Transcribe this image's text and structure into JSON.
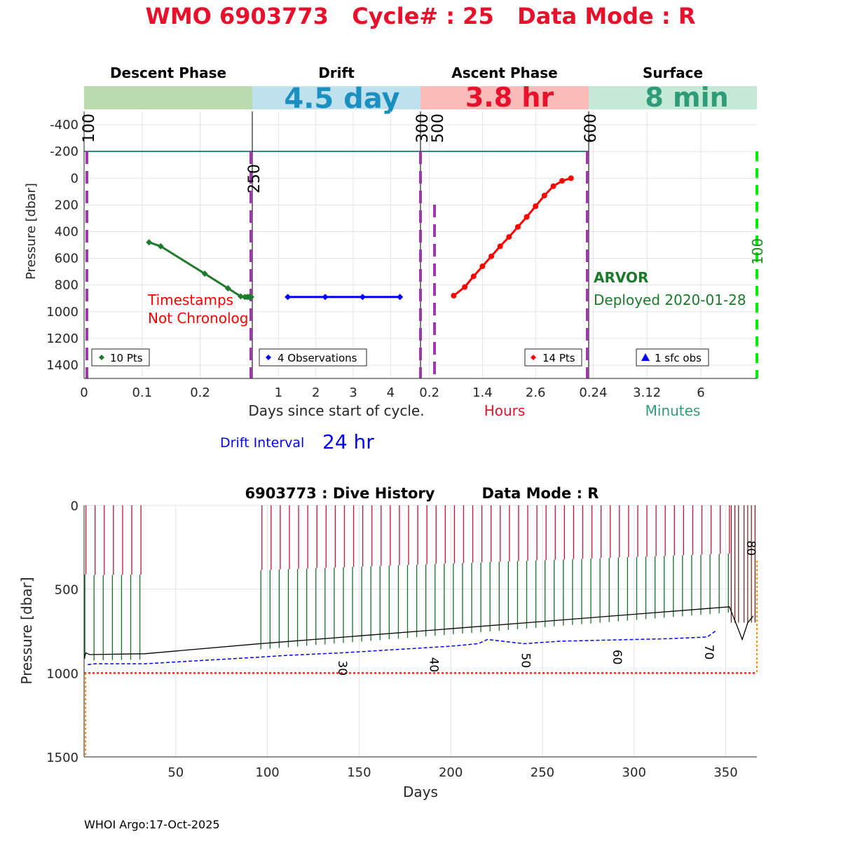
{
  "title": "WMO 6903773   Cycle# : 25   Data Mode : R",
  "top_chart": {
    "ylabel": "Pressure [dbar]",
    "y_ticks": [
      "-400",
      "-200",
      "0",
      "200",
      "400",
      "600",
      "800",
      "1000",
      "1200",
      "1400"
    ],
    "y_tick_values": [
      -400,
      -200,
      0,
      200,
      400,
      600,
      800,
      1000,
      1200,
      1400
    ],
    "ylim": [
      -500,
      1500
    ],
    "phases": [
      {
        "name": "Descent Phase",
        "duration": "",
        "color": "#b9dbad"
      },
      {
        "name": "Drift",
        "duration": "4.5 day",
        "color": "#bfe1ed",
        "duration_color": "#1a8fc0"
      },
      {
        "name": "Ascent Phase",
        "duration": "3.8 hr",
        "color": "#fbbcb9",
        "duration_color": "#e8102a"
      },
      {
        "name": "Surface",
        "duration": "8 min",
        "color": "#c5e9d7",
        "duration_color": "#2e9c78"
      }
    ],
    "descent_xticks": [
      {
        "v": 0,
        "label": "0"
      },
      {
        "v": 0.1,
        "label": "0.1"
      },
      {
        "v": 0.2,
        "label": "0.2"
      }
    ],
    "drift_xticks": [
      {
        "v": 1,
        "label": "1"
      },
      {
        "v": 2,
        "label": "2"
      },
      {
        "v": 3,
        "label": "3"
      },
      {
        "v": 4,
        "label": "4"
      }
    ],
    "ascent_xticks": [
      {
        "v": 0.2,
        "label": "0.2"
      },
      {
        "v": 1.4,
        "label": "1.4"
      },
      {
        "v": 2.6,
        "label": "2.6"
      }
    ],
    "surface_xticks": [
      {
        "v": 0.24,
        "label": "0.24"
      },
      {
        "v": 3.12,
        "label": "3.12"
      },
      {
        "v": 6,
        "label": "6"
      }
    ],
    "xlabel_days": "Days since start of cycle.",
    "xlabel_hours": "Hours",
    "xlabel_minutes": "Minutes",
    "marker_labels": {
      "descent_start": "100",
      "descent_end": "250",
      "drift_end": "300",
      "ascent_start": "500",
      "ascent_end": "600",
      "surface_end": "100"
    },
    "warning": [
      "Timestamps",
      "Not Chronolog"
    ],
    "float_type": "ARVOR",
    "deployed": "Deployed 2020-01-28",
    "legends": {
      "descent": "10 Pts",
      "drift": "4 Observations",
      "ascent": "14 Pts",
      "surface": "1 sfc obs"
    },
    "drift_interval_label": "Drift Interval",
    "drift_interval_value": "24 hr"
  },
  "chart_data": [
    {
      "type": "line",
      "title": "Descent Phase",
      "xlabel": "Days since start of cycle.",
      "ylabel": "Pressure [dbar]",
      "xlim": [
        0,
        0.29
      ],
      "ylim": [
        -500,
        1500
      ],
      "series": [
        {
          "name": "10 Pts",
          "color": "#1f7a2e",
          "x": [
            0.112,
            0.132,
            0.208,
            0.248,
            0.27,
            0.277,
            0.281,
            0.284,
            0.286,
            0.288
          ],
          "y": [
            480,
            510,
            715,
            825,
            885,
            890,
            890,
            890,
            890,
            890
          ]
        }
      ]
    },
    {
      "type": "line",
      "title": "Drift",
      "xlabel": "Days since start of cycle.",
      "xlim": [
        0.3,
        4.8
      ],
      "ylim": [
        -500,
        1500
      ],
      "series": [
        {
          "name": "4 Observations",
          "color": "#0000ff",
          "x": [
            1.25,
            2.25,
            3.25,
            4.25
          ],
          "y": [
            890,
            890,
            890,
            890
          ]
        }
      ]
    },
    {
      "type": "line",
      "title": "Ascent Phase",
      "xlabel": "Hours",
      "xlim": [
        0,
        3.8
      ],
      "ylim": [
        -500,
        1500
      ],
      "series": [
        {
          "name": "14 Pts",
          "color": "#ff0000",
          "x": [
            0.75,
            1.0,
            1.2,
            1.4,
            1.6,
            1.8,
            2.0,
            2.2,
            2.4,
            2.6,
            2.8,
            3.0,
            3.2,
            3.4
          ],
          "y": [
            880,
            815,
            735,
            660,
            585,
            510,
            440,
            365,
            290,
            210,
            130,
            60,
            20,
            0
          ]
        }
      ]
    },
    {
      "type": "scatter",
      "title": "Surface",
      "xlabel": "Minutes",
      "xlim": [
        0,
        9
      ],
      "ylim": [
        -500,
        1500
      ],
      "series": [
        {
          "name": "1 sfc obs",
          "color": "#0000ff",
          "x": [],
          "y": []
        }
      ]
    },
    {
      "type": "line",
      "title": "6903773 : Dive History      Data Mode : R",
      "xlabel": "Days",
      "ylabel": "Pressure [dbar]",
      "xlim": [
        0,
        367
      ],
      "ylim": [
        0,
        1500
      ],
      "xticks": [
        50,
        100,
        150,
        200,
        250,
        300,
        350
      ],
      "yticks": [
        0,
        500,
        1000,
        1500
      ],
      "grid": true,
      "park_depth_line": 1000,
      "cycle_labels": [
        {
          "label": "30",
          "x": 141,
          "y": 925
        },
        {
          "label": "40",
          "x": 191,
          "y": 905
        },
        {
          "label": "50",
          "x": 241,
          "y": 880
        },
        {
          "label": "60",
          "x": 291,
          "y": 860
        },
        {
          "label": "70",
          "x": 341,
          "y": 830
        },
        {
          "label": "80",
          "x": 364,
          "y": 210
        }
      ],
      "series": [
        {
          "name": "drift trend",
          "color": "#000000",
          "x": [
            0,
            1,
            2,
            3,
            33,
            96,
            352,
            356,
            359,
            362,
            365
          ],
          "y": [
            910,
            880,
            885,
            890,
            885,
            825,
            605,
            715,
            800,
            700,
            660
          ]
        },
        {
          "name": "profile bottoms",
          "color": "#0000ff",
          "x": [
            2,
            6,
            33,
            96,
            110,
            140,
            170,
            200,
            215,
            220,
            240,
            260,
            280,
            300,
            320,
            340,
            345
          ],
          "y": [
            950,
            945,
            945,
            905,
            895,
            880,
            860,
            840,
            825,
            800,
            825,
            810,
            805,
            800,
            795,
            785,
            745
          ]
        }
      ]
    }
  ],
  "bottom_chart": {
    "title_left": "6903773 : Dive History",
    "title_right": "Data Mode : R",
    "ylabel": "Pressure [dbar]",
    "xlabel": "Days",
    "y_ticks": [
      "0",
      "500",
      "1000",
      "1500"
    ],
    "x_ticks": [
      "50",
      "100",
      "150",
      "200",
      "250",
      "300",
      "350"
    ]
  },
  "footer": "WHOI Argo:17-Oct-2025"
}
